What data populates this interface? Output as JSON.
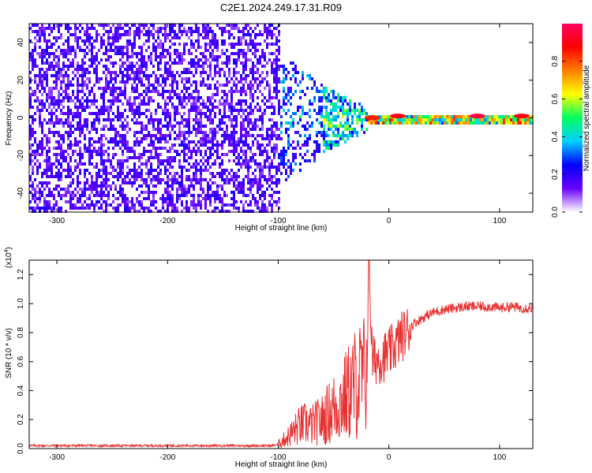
{
  "title": "C2E1.2024.249.17.31.R09",
  "chart_data": [
    {
      "type": "heatmap",
      "xlabel": "Height of straight line (km)",
      "ylabel": "Frequency (Hz)",
      "xlim": [
        -325,
        130
      ],
      "ylim": [
        -50,
        50
      ],
      "xticks": [
        -300,
        -200,
        -100,
        0,
        100
      ],
      "yticks": [
        -40,
        -20,
        0,
        20,
        40
      ],
      "colorbar": {
        "label": "Normalized spectral amplitude",
        "range": [
          0,
          1
        ],
        "ticks": [
          "0.0",
          "0.2",
          "0.4",
          "0.6",
          "0.8"
        ],
        "ticks_values": [
          0.0,
          0.2,
          0.4,
          0.6,
          0.8
        ],
        "colormap": [
          "#ffffff",
          "#6a00ff",
          "#0000ff",
          "#00d0ff",
          "#00ff60",
          "#ffff00",
          "#ff8000",
          "#ff0000",
          "#ff0060"
        ]
      },
      "regions": [
        {
          "x_from": -325,
          "x_to": -100,
          "freq_band": [
            -50,
            50
          ],
          "amplitude": 0.15,
          "description_free": true
        },
        {
          "x_from": -100,
          "x_to": -20,
          "freq_band_edges": [
            [
              -100,
              35
            ],
            [
              -60,
              20
            ],
            [
              -20,
              6
            ]
          ],
          "amplitude": 0.35
        },
        {
          "x_from": -20,
          "x_to": 130,
          "freq_band": [
            -2,
            2
          ],
          "amplitude": 0.55
        }
      ],
      "hotspots": [
        {
          "x": -15,
          "y": 0,
          "amplitude": 0.85
        },
        {
          "x": 8,
          "y": 1,
          "amplitude": 0.9
        },
        {
          "x": 80,
          "y": 1,
          "amplitude": 0.95
        },
        {
          "x": 120,
          "y": 1,
          "amplitude": 0.9
        }
      ]
    },
    {
      "type": "line",
      "xlabel": "Height of straight line (km)",
      "ylabel": "SNR (10 * v/v)",
      "yscale_label": "(x10",
      "yscale_exp": "4",
      "xlim": [
        -325,
        130
      ],
      "ylim": [
        0,
        1.3
      ],
      "xticks": [
        -300,
        -200,
        -100,
        0,
        100
      ],
      "yticks": [
        0.0,
        0.2,
        0.4,
        0.6,
        0.8,
        1.0,
        1.2
      ],
      "ytick_labels": [
        "0.0",
        "0.2",
        "0.4",
        "0.6",
        "0.8",
        "1.0",
        "1.2"
      ],
      "color": "#e8302f",
      "series": [
        {
          "x": [
            -325,
            -200,
            -105,
            -100,
            -95,
            -90,
            -85,
            -80,
            -75,
            -70,
            -65,
            -60,
            -55,
            -50,
            -45,
            -40,
            -35,
            -30,
            -25,
            -20,
            -18,
            -15,
            -10,
            -5,
            0,
            5,
            10,
            15,
            20,
            30,
            40,
            50,
            60,
            70,
            80,
            90,
            100,
            110,
            120,
            130
          ],
          "values": [
            0.02,
            0.02,
            0.02,
            0.03,
            0.06,
            0.09,
            0.13,
            0.16,
            0.17,
            0.16,
            0.18,
            0.2,
            0.24,
            0.28,
            0.31,
            0.35,
            0.4,
            0.45,
            0.48,
            0.52,
            1.3,
            0.6,
            0.62,
            0.63,
            0.66,
            0.7,
            0.76,
            0.8,
            0.85,
            0.9,
            0.94,
            0.96,
            0.97,
            0.98,
            0.98,
            0.98,
            0.97,
            0.98,
            0.97,
            0.97
          ]
        }
      ]
    }
  ]
}
